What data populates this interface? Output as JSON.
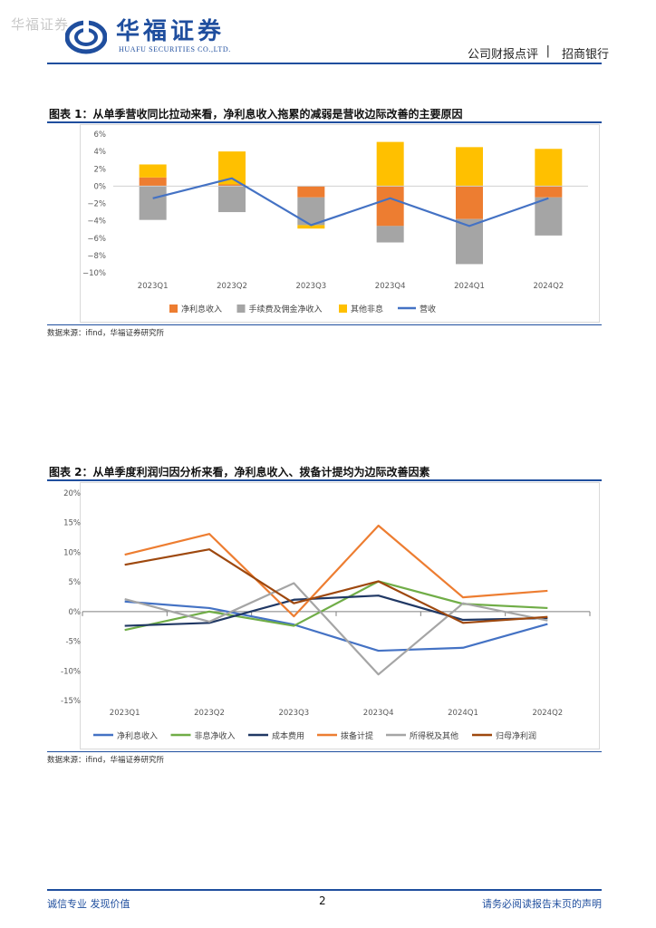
{
  "header": {
    "watermark": "华福证券",
    "brand_cn": "华福证券",
    "brand_en": "HUAFU SECURITIES CO.,LTD.",
    "report_type": "公司财报点评",
    "separator": "|",
    "company": "招商银行"
  },
  "colors": {
    "brand": "#1f4e9e",
    "orange": "#ED7D31",
    "gray": "#A5A5A5",
    "yellow": "#FFC000",
    "blue": "#4472C4",
    "green": "#70AD47",
    "navy": "#203864",
    "brown": "#9E480E"
  },
  "figure1": {
    "title": "图表 1：从单季营收同比拉动来看，净利息收入拖累的减弱是营收边际改善的主要原因",
    "source": "数据来源：ifind，华福证券研究所"
  },
  "figure2": {
    "title": "图表 2：从单季度利润归因分析来看，净利息收入、拨备计提均为边际改善因素",
    "source": "数据来源：ifind，华福证券研究所"
  },
  "chart_data": [
    {
      "type": "bar",
      "stacked": true,
      "categories": [
        "2023Q1",
        "2023Q2",
        "2023Q3",
        "2023Q4",
        "2024Q1",
        "2024Q2"
      ],
      "series": [
        {
          "name": "净利息收入",
          "kind": "bar",
          "color": "#ED7D31",
          "values": [
            1.0,
            0.2,
            -1.3,
            -4.6,
            -3.8,
            -1.3
          ]
        },
        {
          "name": "手续费及佣金净收入",
          "kind": "bar",
          "color": "#A5A5A5",
          "values": [
            -3.9,
            -3.0,
            -3.2,
            -1.9,
            -5.2,
            -4.4
          ]
        },
        {
          "name": "其他非息",
          "kind": "bar",
          "color": "#FFC000",
          "values": [
            1.5,
            3.8,
            -0.4,
            5.1,
            4.5,
            4.3
          ]
        },
        {
          "name": "营收",
          "kind": "line",
          "color": "#4472C4",
          "values": [
            -1.4,
            0.9,
            -4.5,
            -1.4,
            -4.6,
            -1.4
          ]
        }
      ],
      "y_ticks": [
        6,
        4,
        2,
        0,
        -2,
        -4,
        -6,
        -8,
        -10
      ],
      "y_tick_labels": [
        "6%",
        "4%",
        "2%",
        "0%",
        "−2%",
        "−4%",
        "−6%",
        "−8%",
        "−10%"
      ],
      "ylim": [
        -10,
        6
      ],
      "legend": "bottom",
      "grid": false
    },
    {
      "type": "line",
      "categories": [
        "2023Q1",
        "2023Q2",
        "2023Q3",
        "2023Q4",
        "2024Q1",
        "2024Q2"
      ],
      "series": [
        {
          "name": "净利息收入",
          "color": "#4472C4",
          "values": [
            1.7,
            0.6,
            -2.2,
            -6.6,
            -6.1,
            -2.1
          ]
        },
        {
          "name": "非息净收入",
          "color": "#70AD47",
          "values": [
            -3.1,
            0.0,
            -2.4,
            5.1,
            1.3,
            0.6
          ]
        },
        {
          "name": "成本费用",
          "color": "#203864",
          "values": [
            -2.4,
            -1.9,
            2.0,
            2.7,
            -1.4,
            -1.1
          ]
        },
        {
          "name": "拨备计提",
          "color": "#ED7D31",
          "values": [
            9.6,
            13.1,
            -0.8,
            14.5,
            2.4,
            3.5
          ]
        },
        {
          "name": "所得税及其他",
          "color": "#A5A5A5",
          "values": [
            2.1,
            -1.7,
            4.8,
            -10.6,
            1.4,
            -1.5
          ]
        },
        {
          "name": "归母净利润",
          "color": "#9E480E",
          "values": [
            7.9,
            10.5,
            1.4,
            5.1,
            -1.9,
            -0.9
          ]
        }
      ],
      "y_ticks": [
        20,
        15,
        10,
        5,
        0,
        -5,
        -10,
        -15
      ],
      "y_tick_labels": [
        "20%",
        "15%",
        "10%",
        "5%",
        "0%",
        "-5%",
        "-10%",
        "-15%"
      ],
      "ylim": [
        -15,
        20
      ],
      "legend": "bottom",
      "grid": false
    }
  ],
  "footer": {
    "left": "诚信专业  发现价值",
    "page": "2",
    "right": "请务必阅读报告末页的声明"
  }
}
